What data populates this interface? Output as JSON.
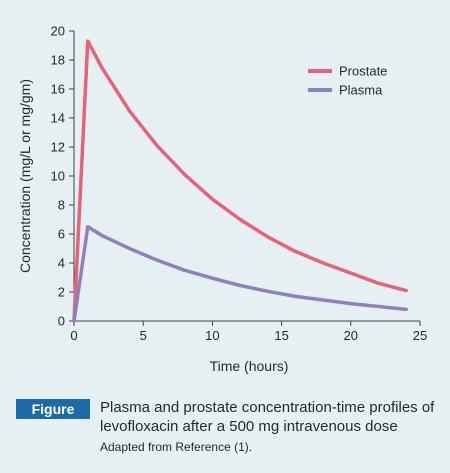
{
  "chart_data": {
    "type": "line",
    "xlabel": "Time (hours)",
    "ylabel": "Concentration (mg/L or mg/gm)",
    "xlim": [
      0,
      25
    ],
    "ylim": [
      0,
      20
    ],
    "xticks": [
      0,
      5,
      10,
      15,
      20,
      25
    ],
    "yticks": [
      0,
      2,
      4,
      6,
      8,
      10,
      12,
      14,
      16,
      18,
      20
    ],
    "grid": false,
    "legend_position": "top-right",
    "series": [
      {
        "name": "Prostate",
        "color": "#e8617a",
        "x": [
          0,
          1,
          2,
          4,
          6,
          8,
          10,
          12,
          14,
          16,
          18,
          20,
          22,
          24
        ],
        "y": [
          0,
          19.3,
          17.5,
          14.5,
          12.1,
          10.1,
          8.4,
          7.0,
          5.8,
          4.8,
          4.0,
          3.3,
          2.6,
          2.1
        ]
      },
      {
        "name": "Plasma",
        "color": "#8e80c0",
        "x": [
          0,
          1,
          2,
          4,
          6,
          8,
          10,
          12,
          14,
          16,
          18,
          20,
          22,
          24
        ],
        "y": [
          0,
          6.5,
          5.9,
          5.0,
          4.2,
          3.5,
          2.95,
          2.45,
          2.05,
          1.7,
          1.45,
          1.2,
          1.0,
          0.8
        ]
      }
    ]
  },
  "caption": {
    "badge": "Figure",
    "text": "Plasma and prostate concentration-time profiles of levofloxacin after a 500 mg intravenous dose",
    "source": "Adapted from Reference (1)."
  }
}
